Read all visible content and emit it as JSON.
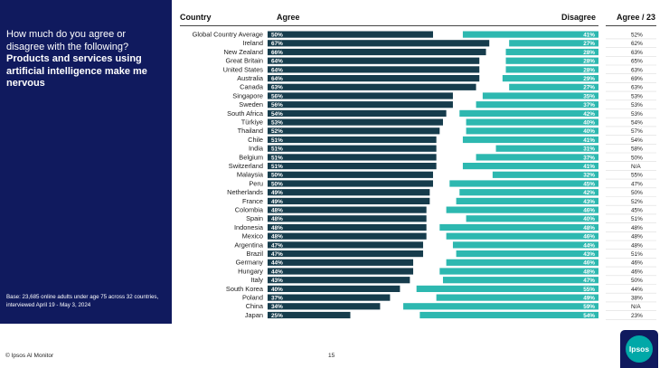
{
  "colors": {
    "agree": "#163c4c",
    "disagree": "#2db8b0",
    "sidebar": "#101a5e",
    "logo_circle": "#00a8a8"
  },
  "sidebar": {
    "question_lead": "How much do you agree or disagree with the following?",
    "question_main": "Products and services using artificial intelligence make me nervous",
    "base_note": "Base: 23,685 online adults under age 75 across 32 countries, interviewed April 19 - May 3, 2024"
  },
  "footer": {
    "source": "© Ipsos AI Monitor",
    "page": "15",
    "logo_text": "Ipsos"
  },
  "chart_data": {
    "type": "bar",
    "orientation": "horizontal-diverging",
    "headers": {
      "country": "Country",
      "agree": "Agree",
      "disagree": "Disagree",
      "trend": "Agree / 23"
    },
    "categories": [
      "Global Country Average",
      "Ireland",
      "New Zealand",
      "Great Britain",
      "United States",
      "Australia",
      "Canada",
      "Singapore",
      "Sweden",
      "South Africa",
      "Türkiye",
      "Thailand",
      "Chile",
      "India",
      "Belgium",
      "Switzerland",
      "Malaysia",
      "Peru",
      "Netherlands",
      "France",
      "Colombia",
      "Spain",
      "Indonesia",
      "Mexico",
      "Argentina",
      "Brazil",
      "Germany",
      "Hungary",
      "Italy",
      "South Korea",
      "Poland",
      "China",
      "Japan"
    ],
    "series": [
      {
        "name": "Agree",
        "values": [
          50,
          67,
          66,
          64,
          64,
          64,
          63,
          56,
          56,
          54,
          53,
          52,
          51,
          51,
          51,
          51,
          50,
          50,
          49,
          49,
          48,
          48,
          48,
          48,
          47,
          47,
          44,
          44,
          43,
          40,
          37,
          34,
          25
        ]
      },
      {
        "name": "Disagree",
        "values": [
          41,
          27,
          28,
          28,
          28,
          29,
          27,
          35,
          37,
          42,
          40,
          40,
          41,
          31,
          37,
          41,
          32,
          45,
          42,
          43,
          46,
          40,
          48,
          46,
          44,
          43,
          46,
          48,
          47,
          55,
          49,
          59,
          54
        ]
      }
    ],
    "agree_2023": [
      "52%",
      "62%",
      "63%",
      "65%",
      "63%",
      "69%",
      "63%",
      "53%",
      "53%",
      "53%",
      "54%",
      "57%",
      "54%",
      "58%",
      "50%",
      "N/A",
      "55%",
      "47%",
      "50%",
      "52%",
      "45%",
      "51%",
      "48%",
      "48%",
      "48%",
      "51%",
      "46%",
      "46%",
      "50%",
      "44%",
      "38%",
      "N/A",
      "23%"
    ],
    "xlim": [
      0,
      100
    ],
    "value_suffix": "%"
  }
}
